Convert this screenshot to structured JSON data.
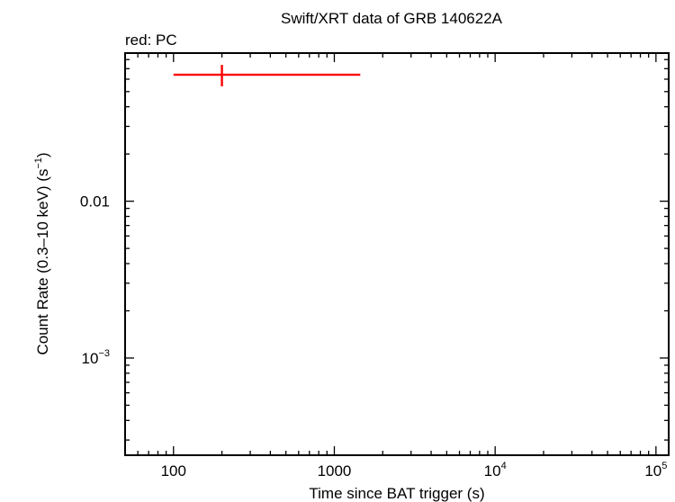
{
  "chart_data": {
    "type": "scatter",
    "title": "Swift/XRT data of GRB 140622A",
    "subtitle": "red: PC",
    "xlabel": "Time since BAT trigger (s)",
    "ylabel": "Count Rate (0.3–10 keV) (s",
    "ylabel_sup": "−1",
    "ylabel_tail": ")",
    "xscale": "log",
    "yscale": "log",
    "xlim": [
      50,
      120000
    ],
    "ylim": [
      0.00024,
      0.088
    ],
    "x_ticks": [
      {
        "value": 100,
        "label": "100"
      },
      {
        "value": 1000,
        "label": "1000"
      },
      {
        "value": 10000,
        "base": "10",
        "exp": "4"
      },
      {
        "value": 100000,
        "base": "10",
        "exp": "5"
      }
    ],
    "y_ticks": [
      {
        "value": 0.01,
        "label": "0.01"
      },
      {
        "value": 0.001,
        "base": "10",
        "exp": "−3"
      }
    ],
    "series": [
      {
        "color": "#ff0000",
        "points": [
          {
            "x": 200,
            "xmin": 100,
            "xmax": 1450,
            "y": 0.064,
            "ymin": 0.054,
            "ymax": 0.074
          }
        ]
      }
    ]
  }
}
